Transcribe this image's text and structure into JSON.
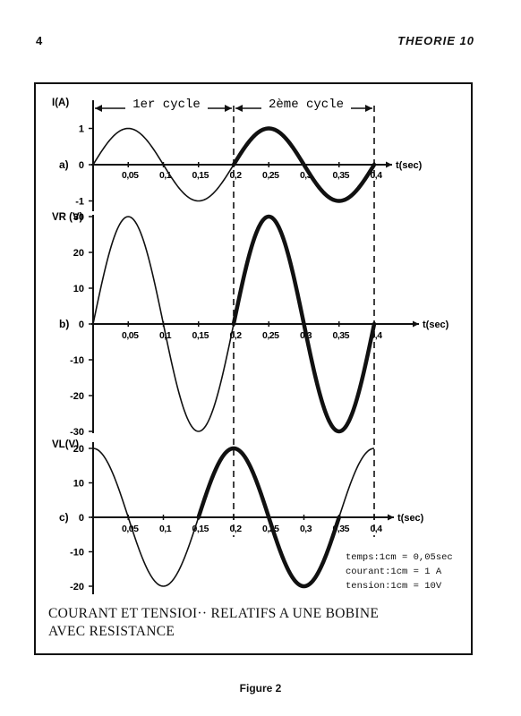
{
  "header": {
    "page_number": "4",
    "title": "THEORIE 10"
  },
  "caption": {
    "line1": "COURANT ET TENSIOI·· RELATIFS A UNE BOBINE",
    "line2": "AVEC RESISTANCE"
  },
  "figure_label": "Figure 2",
  "scale_note": {
    "line1": "temps:1cm = 0,05sec",
    "line2": "courant:1cm = 1 A",
    "line3": "tension:1cm = 10V"
  },
  "cycles": {
    "first": "1er cycle",
    "second": "2ème cycle"
  },
  "chart_data": [
    {
      "type": "line",
      "panel_label": "a)",
      "ylabel": "I(A)",
      "xlabel": "t(sec)",
      "xlim": [
        0,
        0.4
      ],
      "ylim": [
        -1,
        1
      ],
      "y_ticks": [
        "1",
        "0",
        "-1"
      ],
      "y_tick_values": [
        1,
        0,
        -1
      ],
      "x_ticks": [
        "0,05",
        "0,1",
        "0,15",
        "0,2",
        "0,25",
        "0,3",
        "0,35",
        "0,4"
      ],
      "x_tick_values": [
        0.05,
        0.1,
        0.15,
        0.2,
        0.25,
        0.3,
        0.35,
        0.4
      ],
      "series": [
        {
          "amplitude": 1,
          "period": 0.2,
          "phase_deg": 0,
          "highlight_from": 0.2,
          "highlight_to": 0.4
        }
      ]
    },
    {
      "type": "line",
      "panel_label": "b)",
      "ylabel": "VR (V)",
      "xlabel": "t(sec)",
      "xlim": [
        0,
        0.4
      ],
      "ylim": [
        -30,
        30
      ],
      "y_ticks": [
        "30",
        "20",
        "10",
        "0",
        "-10",
        "-20",
        "-30"
      ],
      "y_tick_values": [
        30,
        20,
        10,
        0,
        -10,
        -20,
        -30
      ],
      "x_ticks": [
        "0,05",
        "0,1",
        "0,15",
        "0,2",
        "0,25",
        "0,3",
        "0,35",
        "0,4"
      ],
      "x_tick_values": [
        0.05,
        0.1,
        0.15,
        0.2,
        0.25,
        0.3,
        0.35,
        0.4
      ],
      "series": [
        {
          "amplitude": 30,
          "period": 0.2,
          "phase_deg": 0,
          "highlight_from": 0.2,
          "highlight_to": 0.4
        }
      ]
    },
    {
      "type": "line",
      "panel_label": "c)",
      "ylabel": "VL(V)",
      "xlabel": "t(sec)",
      "xlim": [
        0,
        0.4
      ],
      "ylim": [
        -20,
        20
      ],
      "y_ticks": [
        "20",
        "10",
        "0",
        "-10",
        "-20"
      ],
      "y_tick_values": [
        20,
        10,
        0,
        -10,
        -20
      ],
      "x_ticks": [
        "0,05",
        "0,1",
        "0,15",
        "0,2",
        "0,25",
        "0,3",
        "0,35",
        "0,4"
      ],
      "x_tick_values": [
        0.05,
        0.1,
        0.15,
        0.2,
        0.25,
        0.3,
        0.35,
        0.4
      ],
      "series": [
        {
          "amplitude": 20,
          "period": 0.2,
          "phase_deg": 90,
          "highlight_from": 0.15,
          "highlight_to": 0.35
        }
      ]
    }
  ]
}
